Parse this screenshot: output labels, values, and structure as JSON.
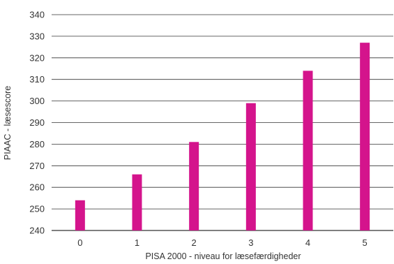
{
  "chart_data": {
    "type": "bar",
    "categories": [
      "0",
      "1",
      "2",
      "3",
      "4",
      "5"
    ],
    "values": [
      254,
      266,
      281,
      299,
      314,
      327
    ],
    "xlabel": "PISA 2000 - niveau for læsefærdigheder",
    "ylabel": "PIAAC - læsescore",
    "ylim": [
      240,
      340
    ],
    "yticks": [
      "240",
      "250",
      "260",
      "270",
      "280",
      "290",
      "300",
      "310",
      "320",
      "330",
      "340"
    ],
    "grid": true,
    "bar_color": "#d4148c",
    "grid_color": "#333333"
  }
}
